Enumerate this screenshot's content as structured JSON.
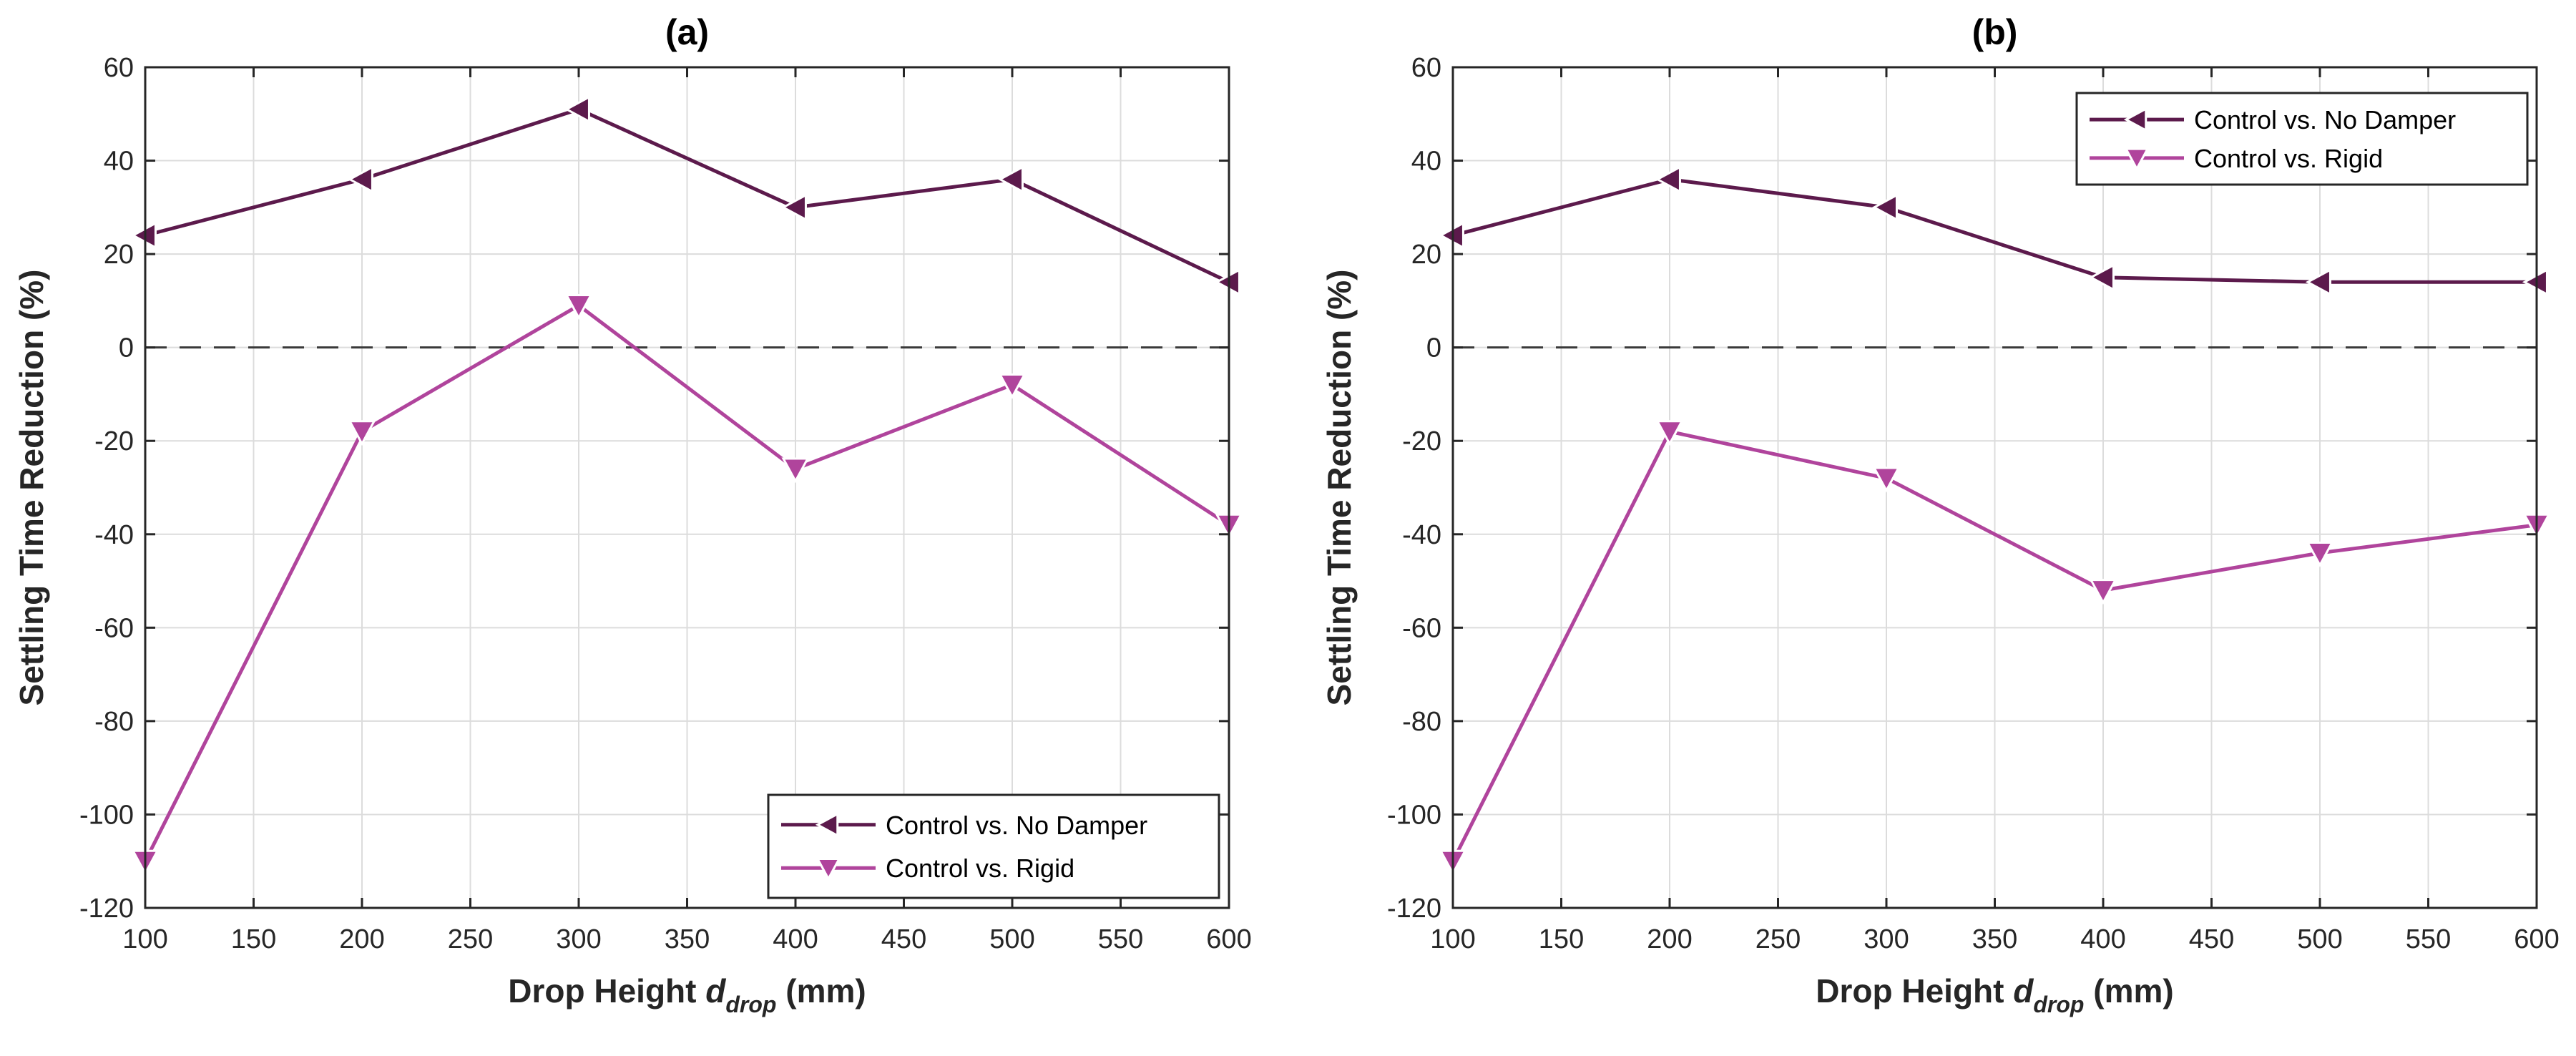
{
  "colors": {
    "no_damper": "#5c1a4c",
    "rigid": "#b0449c",
    "grid": "#dcdcdc",
    "axis": "#262626",
    "zero_line": "#3a3a3a"
  },
  "chart_data": [
    {
      "type": "line",
      "title": "(a)",
      "xlabel_main": "Drop Height ",
      "xlabel_var": "d",
      "xlabel_sub": "drop",
      "xlabel_unit": " (mm)",
      "ylabel": "Settling Time Reduction (%)",
      "xlim": [
        100,
        600
      ],
      "ylim": [
        -120,
        60
      ],
      "xticks": [
        100,
        150,
        200,
        250,
        300,
        350,
        400,
        450,
        500,
        550,
        600
      ],
      "yticks": [
        -120,
        -100,
        -80,
        -60,
        -40,
        -20,
        0,
        20,
        40,
        60
      ],
      "grid": true,
      "reference_line": 0,
      "legend_position": "bottom-right",
      "series": [
        {
          "name": "Control vs. No Damper",
          "marker": "triangle-left",
          "color_key": "no_damper",
          "x": [
            100,
            200,
            300,
            400,
            500,
            600
          ],
          "values": [
            24,
            36,
            51,
            30,
            36,
            14
          ]
        },
        {
          "name": "Control vs. Rigid",
          "marker": "triangle-down",
          "color_key": "rigid",
          "x": [
            100,
            200,
            300,
            400,
            500,
            600
          ],
          "values": [
            -110,
            -18,
            9,
            -26,
            -8,
            -38
          ]
        }
      ]
    },
    {
      "type": "line",
      "title": "(b)",
      "xlabel_main": "Drop Height ",
      "xlabel_var": "d",
      "xlabel_sub": "drop",
      "xlabel_unit": " (mm)",
      "ylabel": "Settling Time Reduction (%)",
      "xlim": [
        100,
        600
      ],
      "ylim": [
        -120,
        60
      ],
      "xticks": [
        100,
        150,
        200,
        250,
        300,
        350,
        400,
        450,
        500,
        550,
        600
      ],
      "yticks": [
        -120,
        -100,
        -80,
        -60,
        -40,
        -20,
        0,
        20,
        40,
        60
      ],
      "grid": true,
      "reference_line": 0,
      "legend_position": "top-right",
      "series": [
        {
          "name": "Control vs. No Damper",
          "marker": "triangle-left",
          "color_key": "no_damper",
          "x": [
            100,
            200,
            300,
            400,
            500,
            600
          ],
          "values": [
            24,
            36,
            30,
            15,
            14,
            14
          ]
        },
        {
          "name": "Control vs. Rigid",
          "marker": "triangle-down",
          "color_key": "rigid",
          "x": [
            100,
            200,
            300,
            400,
            500,
            600
          ],
          "values": [
            -110,
            -18,
            -28,
            -52,
            -44,
            -38
          ]
        }
      ]
    }
  ]
}
